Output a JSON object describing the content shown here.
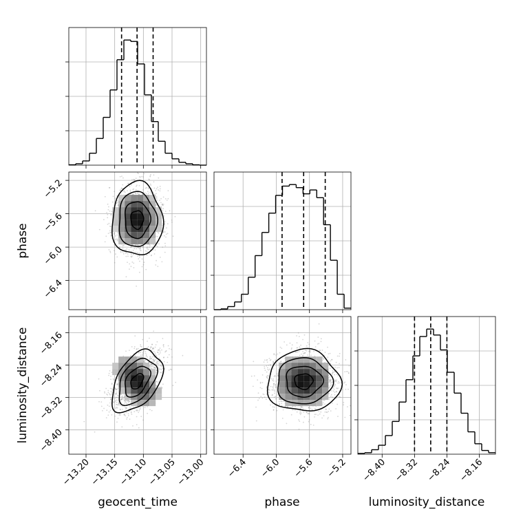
{
  "chart_data": {
    "type": "corner",
    "parameters": [
      "geocent_time",
      "phase",
      "luminosity_distance"
    ],
    "axis_labels": {
      "x": [
        "geocent_time",
        "phase",
        "luminosity_distance"
      ],
      "y": [
        "",
        "phase",
        "luminosity_distance"
      ]
    },
    "ranges": {
      "geocent_time": [
        -13.23,
        -12.99
      ],
      "phase": [
        -6.75,
        -5.1
      ],
      "luminosity_distance": [
        -8.46,
        -8.12
      ]
    },
    "ticks": {
      "geocent_time": [
        -13.2,
        -13.15,
        -13.1,
        -13.05,
        -13.0
      ],
      "phase": [
        -6.4,
        -6.0,
        -5.6,
        -5.2
      ],
      "luminosity_distance": [
        -8.4,
        -8.32,
        -8.24,
        -8.16
      ]
    },
    "tick_labels": {
      "geocent_time": [
        "−13.20",
        "−13.15",
        "−13.10",
        "−13.05",
        "−13.00"
      ],
      "phase": [
        "−6.4",
        "−6.0",
        "−5.6",
        "−5.2"
      ],
      "luminosity_distance": [
        "−8.40",
        "−8.32",
        "−8.24",
        "−8.16"
      ]
    },
    "quantiles": {
      "geocent_time": [
        -13.138,
        -13.111,
        -13.083
      ],
      "phase": [
        -5.93,
        -5.67,
        -5.41
      ],
      "luminosity_distance": [
        -8.32,
        -8.28,
        -8.24
      ]
    },
    "histograms": {
      "geocent_time": [
        0.5,
        2,
        6,
        17,
        38,
        68,
        107,
        150,
        178,
        176,
        144,
        100,
        62,
        34,
        17,
        9,
        4,
        2,
        0.5,
        0
      ],
      "phase": [
        0,
        1,
        4,
        10,
        20,
        42,
        70,
        100,
        125,
        148,
        160,
        162,
        158,
        150,
        155,
        145,
        110,
        64,
        20,
        2
      ],
      "luminosity_distance": [
        1,
        2,
        6,
        12,
        25,
        44,
        70,
        100,
        132,
        158,
        168,
        160,
        140,
        110,
        82,
        55,
        30,
        14,
        5,
        2
      ]
    },
    "grid": true
  }
}
